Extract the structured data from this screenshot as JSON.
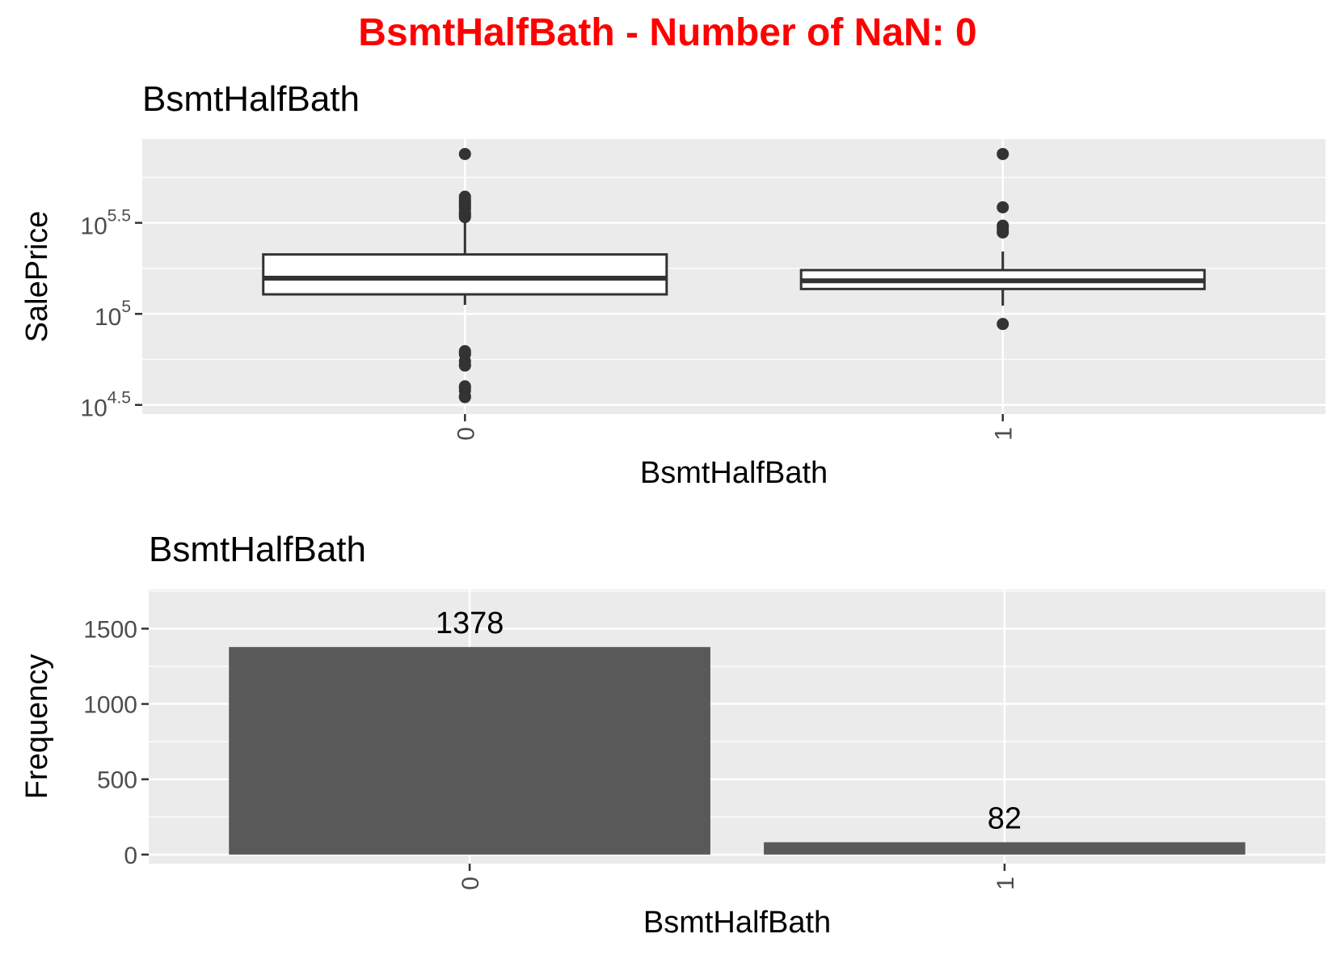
{
  "figure": {
    "title": "BsmtHalfBath - Number of NaN: 0",
    "title_color": "#ff0000"
  },
  "chart_data": [
    {
      "type": "boxplot",
      "title": "BsmtHalfBath",
      "xlabel": "BsmtHalfBath",
      "ylabel": "SalePrice",
      "y_scale": "log10",
      "y_exponent_range": [
        4.45,
        5.96
      ],
      "y_ticks": [
        {
          "base": "10",
          "exp": "4.5",
          "value_exp": 4.5
        },
        {
          "base": "10",
          "exp": "5",
          "value_exp": 5.0
        },
        {
          "base": "10",
          "exp": "5.5",
          "value_exp": 5.5
        }
      ],
      "categories": [
        "0",
        "1"
      ],
      "boxes": [
        {
          "category": "0",
          "whisker_low": 112000,
          "q1": 128000,
          "median": 157000,
          "q3": 212000,
          "whisker_high": 336000,
          "outliers": [
            34900,
            35300,
            37900,
            39300,
            40000,
            52000,
            52500,
            55000,
            60000,
            61000,
            62383,
            340000,
            345000,
            350000,
            355000,
            360000,
            375000,
            385000,
            392000,
            402000,
            410000,
            415000,
            426000,
            440000,
            755000
          ]
        },
        {
          "category": "1",
          "whisker_low": 111000,
          "q1": 137000,
          "median": 152000,
          "q3": 174000,
          "whisker_high": 220000,
          "outliers": [
            88000,
            280000,
            290000,
            300000,
            305000,
            385000,
            755000
          ]
        }
      ],
      "colors": {
        "panel": "#ebebeb",
        "grid": "#ffffff",
        "box_fill": "#ffffff",
        "box_line": "#333333"
      }
    },
    {
      "type": "bar",
      "title": "BsmtHalfBath",
      "xlabel": "BsmtHalfBath",
      "ylabel": "Frequency",
      "categories": [
        "0",
        "1"
      ],
      "values": [
        1378,
        82
      ],
      "data_labels": [
        "1378",
        "82"
      ],
      "ylim": [
        -60,
        1760
      ],
      "y_ticks": [
        0,
        500,
        1000,
        1500
      ],
      "y_tick_labels": [
        "0",
        "500",
        "1000",
        "1500"
      ],
      "colors": {
        "panel": "#ebebeb",
        "grid": "#ffffff",
        "bar": "#595959"
      }
    }
  ]
}
